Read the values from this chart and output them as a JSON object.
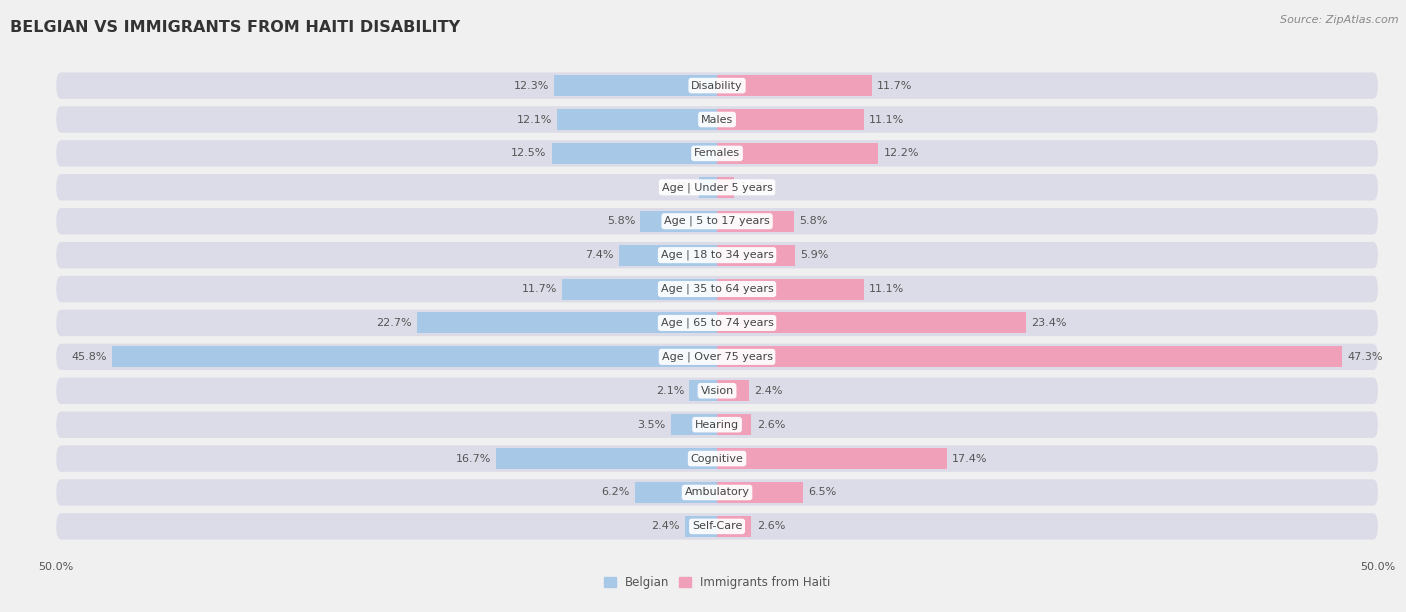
{
  "title": "BELGIAN VS IMMIGRANTS FROM HAITI DISABILITY",
  "source": "Source: ZipAtlas.com",
  "categories": [
    "Disability",
    "Males",
    "Females",
    "Age | Under 5 years",
    "Age | 5 to 17 years",
    "Age | 18 to 34 years",
    "Age | 35 to 64 years",
    "Age | 65 to 74 years",
    "Age | Over 75 years",
    "Vision",
    "Hearing",
    "Cognitive",
    "Ambulatory",
    "Self-Care"
  ],
  "belgian_values": [
    12.3,
    12.1,
    12.5,
    1.4,
    5.8,
    7.4,
    11.7,
    22.7,
    45.8,
    2.1,
    3.5,
    16.7,
    6.2,
    2.4
  ],
  "haiti_values": [
    11.7,
    11.1,
    12.2,
    1.3,
    5.8,
    5.9,
    11.1,
    23.4,
    47.3,
    2.4,
    2.6,
    17.4,
    6.5,
    2.6
  ],
  "belgian_color": "#a8c8e8",
  "haiti_color": "#f0a0b8",
  "max_val": 50.0,
  "background_color": "#f0f0f0",
  "row_bg_color": "#e0e0e8",
  "label_fontsize": 8.0,
  "title_fontsize": 11.5,
  "source_fontsize": 8.0,
  "value_label_color": "#555555",
  "category_label_color": "#555555"
}
